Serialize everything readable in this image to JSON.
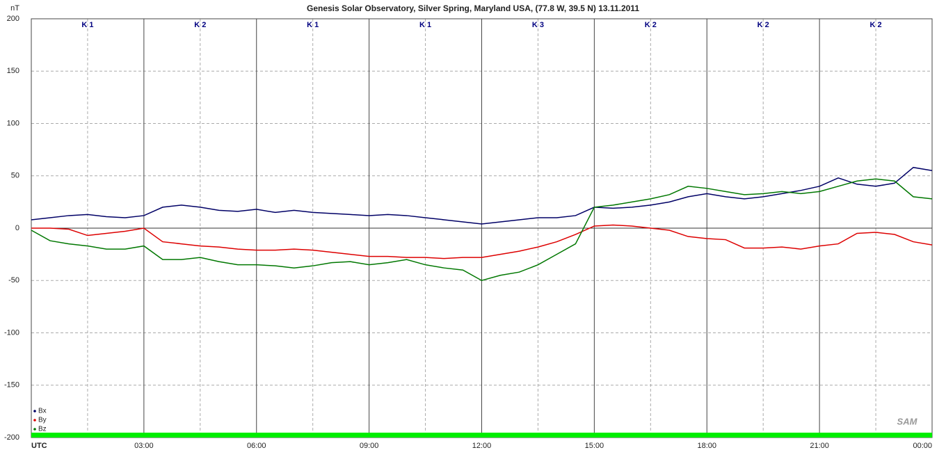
{
  "chart_data": {
    "type": "line",
    "title": "Genesis Solar Observatory, Silver Spring, Maryland USA, (77.8 W, 39.5 N)  13.11.2011",
    "y_label": "nT",
    "logo": "SAM",
    "k_labels": [
      "K 1",
      "K 2",
      "K 1",
      "K 1",
      "K 3",
      "K 2",
      "K 2",
      "K 2"
    ],
    "x": [
      0,
      0.5,
      1,
      1.5,
      2,
      2.5,
      3,
      3.5,
      4,
      4.5,
      5,
      5.5,
      6,
      6.5,
      7,
      7.5,
      8,
      8.5,
      9,
      9.5,
      10,
      10.5,
      11,
      11.5,
      12,
      12.5,
      13,
      13.5,
      14,
      14.5,
      15,
      15.5,
      16,
      16.5,
      17,
      17.5,
      18,
      18.5,
      19,
      19.5,
      20,
      20.5,
      21,
      21.5,
      22,
      22.5,
      23,
      23.5,
      24
    ],
    "series": [
      {
        "name": "Bx",
        "color": "#000066",
        "values": [
          8,
          10,
          12,
          13,
          11,
          10,
          12,
          20,
          22,
          20,
          17,
          16,
          18,
          15,
          17,
          15,
          14,
          13,
          12,
          13,
          12,
          10,
          8,
          6,
          4,
          6,
          8,
          10,
          10,
          12,
          20,
          19,
          20,
          22,
          25,
          30,
          33,
          30,
          28,
          30,
          33,
          36,
          40,
          48,
          42,
          40,
          43,
          58,
          55
        ]
      },
      {
        "name": "By",
        "color": "#dd0000",
        "values": [
          0,
          0,
          -1,
          -7,
          -5,
          -3,
          0,
          -13,
          -15,
          -17,
          -18,
          -20,
          -21,
          -21,
          -20,
          -21,
          -23,
          -25,
          -27,
          -27,
          -28,
          -28,
          -29,
          -28,
          -28,
          -25,
          -22,
          -18,
          -13,
          -6,
          2,
          3,
          2,
          0,
          -2,
          -8,
          -10,
          -11,
          -19,
          -19,
          -18,
          -20,
          -17,
          -15,
          -5,
          -4,
          -6,
          -13,
          -16
        ]
      },
      {
        "name": "Bz",
        "color": "#007700",
        "values": [
          -2,
          -12,
          -15,
          -17,
          -20,
          -20,
          -17,
          -30,
          -30,
          -28,
          -32,
          -35,
          -35,
          -36,
          -38,
          -36,
          -33,
          -32,
          -35,
          -33,
          -30,
          -35,
          -38,
          -40,
          -50,
          -45,
          -42,
          -35,
          -25,
          -15,
          20,
          22,
          25,
          28,
          32,
          40,
          38,
          35,
          32,
          33,
          35,
          33,
          35,
          40,
          45,
          47,
          45,
          30,
          28
        ]
      }
    ],
    "xlim": [
      0,
      24
    ],
    "xticks": [
      {
        "value": 0,
        "label": "UTC"
      },
      {
        "value": 3,
        "label": "03:00"
      },
      {
        "value": 6,
        "label": "06:00"
      },
      {
        "value": 9,
        "label": "09:00"
      },
      {
        "value": 12,
        "label": "12:00"
      },
      {
        "value": 15,
        "label": "15:00"
      },
      {
        "value": 18,
        "label": "18:00"
      },
      {
        "value": 21,
        "label": "21:00"
      },
      {
        "value": 24,
        "label": "00:00"
      }
    ],
    "ylim": [
      -200,
      200
    ],
    "yticks": [
      -200,
      -150,
      -100,
      -50,
      0,
      50,
      100,
      150,
      200
    ],
    "grid": true,
    "legend": "bottom-left"
  }
}
